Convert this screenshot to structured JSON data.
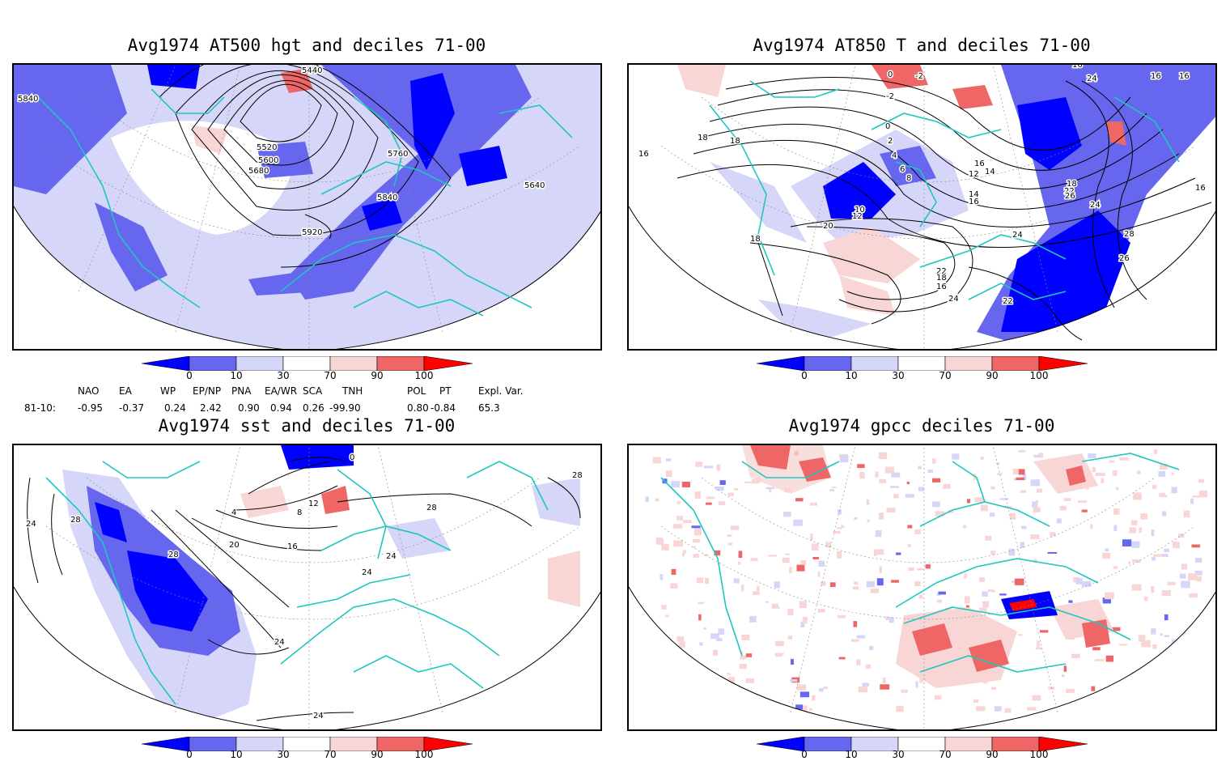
{
  "colors": {
    "coast": "#1ec7c0",
    "contour": "#000000",
    "dark_blue": "#0000ff",
    "mid_blue": "#6666ee",
    "light_blue": "#d6d6f8",
    "light_red": "#f8d6d6",
    "mid_red": "#ee6666",
    "dark_red": "#ff0000"
  },
  "colorbar": {
    "labels": [
      "0",
      "10",
      "30",
      "70",
      "90",
      "100"
    ]
  },
  "panels": [
    {
      "id": "p1",
      "title": "Avg1974 AT500 hgt and deciles 71-00",
      "contour_labels": [
        "5440",
        "5520",
        "5600",
        "5680",
        "5760",
        "5840",
        "5640",
        "5920",
        "5840"
      ]
    },
    {
      "id": "p2",
      "title": "Avg1974 AT850 T and deciles 71-00",
      "contour_labels": [
        "16",
        "18",
        "18",
        "0",
        "-2",
        "-2",
        "0",
        "2",
        "4",
        "6",
        "8",
        "10",
        "12",
        "14",
        "16",
        "12",
        "14",
        "16",
        "18",
        "22",
        "26",
        "24",
        "28",
        "26",
        "24",
        "22",
        "18",
        "16",
        "24",
        "22",
        "20",
        "18",
        "16",
        "16",
        "16",
        "24",
        "16"
      ]
    },
    {
      "id": "p3",
      "title": "Avg1974 sst and deciles 71-00",
      "contour_labels": [
        "24",
        "28",
        "28",
        "20",
        "16",
        "12",
        "8",
        "4",
        "0",
        "24",
        "24",
        "28",
        "28",
        "24",
        "24",
        "24"
      ]
    },
    {
      "id": "p4",
      "title": "Avg1974 gpcc deciles 71-00",
      "contour_labels": []
    }
  ],
  "indices": {
    "headers": [
      "NAO",
      "EA",
      "WP",
      "EP/NP",
      "PNA",
      "EA/WR",
      "SCA",
      "TNH",
      "POL",
      "PT",
      "Expl. Var."
    ],
    "row_label": "81-10:",
    "values": [
      "-0.95",
      "-0.37",
      "0.24",
      "2.42",
      "0.90",
      "0.94",
      "0.26",
      "-99.90",
      "0.80",
      "-0.84",
      "65.3"
    ]
  }
}
